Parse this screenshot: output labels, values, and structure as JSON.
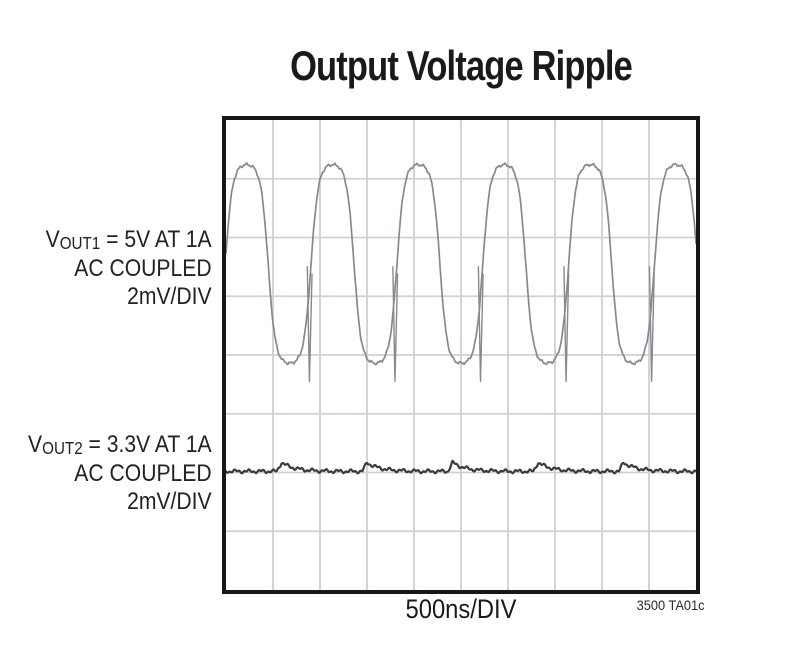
{
  "title": "Output Voltage Ripple",
  "labels": {
    "trace1": {
      "symbol": "V",
      "subscript": "OUT1",
      "rest": " = 5V AT 1A",
      "coupling": "AC COUPLED",
      "scale": "2mV/DIV"
    },
    "trace2": {
      "symbol": "V",
      "subscript": "OUT2",
      "rest": " = 3.3V AT 1A",
      "coupling": "AC COUPLED",
      "scale": "2mV/DIV"
    }
  },
  "footer": {
    "time_scale": "500ns/DIV",
    "figure_id": "3500 TA01c"
  },
  "colors": {
    "background": "#ffffff",
    "text": "#1a1a1e",
    "scope_border": "#17171b",
    "grid_line": "#cdd0d6",
    "trace1": "#87898e",
    "trace2": "#3a3b3e"
  },
  "chart_data": {
    "type": "line",
    "title": "Output Voltage Ripple",
    "x_axis": {
      "label": "500ns/DIV",
      "divisions": 10,
      "units_per_division": "500ns"
    },
    "y_axis": {
      "divisions": 8,
      "units_per_division": "2mV",
      "coupling": "AC COUPLED"
    },
    "grid": true,
    "legend_position": "left-of-plot",
    "series": [
      {
        "name": "VOUT1",
        "description": "VOUT1 = 5V AT 1A, AC COUPLED, 2mV/DIV",
        "shape": "sine-like switching ripple with narrow downward spikes on each rising edge",
        "midline_div": 2.45,
        "amplitude_div": 1.69,
        "peak_to_peak_mV": 6.8,
        "period_div": 1.827,
        "period_ns": 913,
        "first_peak_x_div": 0.44,
        "edge_sharpness": 1.8,
        "noise_div": 0.018,
        "spikes_x_div": [
          1.78,
          3.6,
          5.42,
          7.24,
          9.06
        ],
        "spike_top_div": 2.5,
        "spike_bottom_div": 4.45,
        "spike_halfwidth_div": 0.05,
        "color": "#87898e",
        "stroke_px": 1.7
      },
      {
        "name": "VOUT2",
        "description": "VOUT2 = 3.3V AT 1A, AC COUPLED, 2mV/DIV",
        "shape": "nearly flat trace with small periodic switching bumps",
        "baseline_div": 5.98,
        "ripple_peak_to_peak_mV": 0.4,
        "bump_x_div": [
          1.08,
          2.9,
          4.72,
          6.54,
          8.36
        ],
        "bump_height_div": 0.15,
        "bump_rise_div": 0.1,
        "bump_decay_div": 0.28,
        "noise_div": 0.02,
        "color": "#3a3b3e",
        "stroke_px": 2.2
      }
    ]
  }
}
